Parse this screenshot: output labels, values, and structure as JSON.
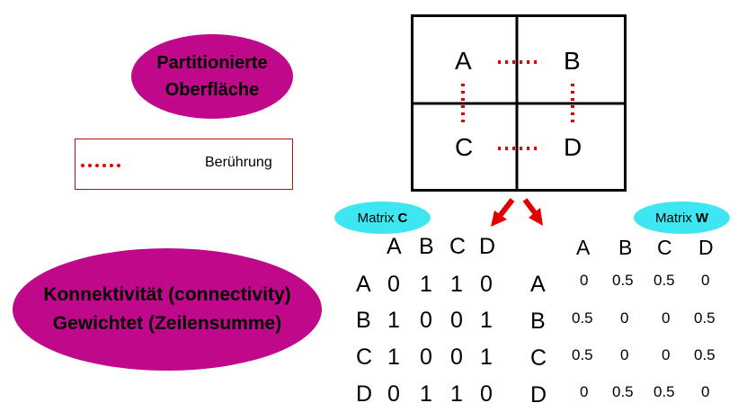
{
  "partitioned_surface": {
    "line1": "Partitionierte",
    "line2": "Oberfläche"
  },
  "legend": {
    "label": "Berührung"
  },
  "grid_cells": [
    "A",
    "B",
    "C",
    "D"
  ],
  "matrix_c": {
    "title": "Matrix",
    "title_bold": "C",
    "col_headers": [
      "A",
      "B",
      "C",
      "D"
    ],
    "row_headers": [
      "A",
      "B",
      "C",
      "D"
    ],
    "rows": [
      [
        "0",
        "1",
        "1",
        "0"
      ],
      [
        "1",
        "0",
        "0",
        "1"
      ],
      [
        "1",
        "0",
        "0",
        "1"
      ],
      [
        "0",
        "1",
        "1",
        "0"
      ]
    ]
  },
  "matrix_w": {
    "title": "Matrix",
    "title_bold": "W",
    "col_headers": [
      "A",
      "B",
      "C",
      "D"
    ],
    "row_headers": [
      "A",
      "B",
      "C",
      "D"
    ],
    "rows": [
      [
        "0",
        "0.5",
        "0.5",
        "0"
      ],
      [
        "0.5",
        "0",
        "0",
        "0.5"
      ],
      [
        "0.5",
        "0",
        "0",
        "0.5"
      ],
      [
        "0",
        "0.5",
        "0.5",
        "0"
      ]
    ]
  },
  "connectivity": {
    "line1": "Konnektivität (connectivity)",
    "line2": "Gewichtet (Zeilensumme)"
  },
  "colors": {
    "magenta": "#c0088a",
    "cyan": "#3de6f0",
    "red": "#e00000"
  }
}
